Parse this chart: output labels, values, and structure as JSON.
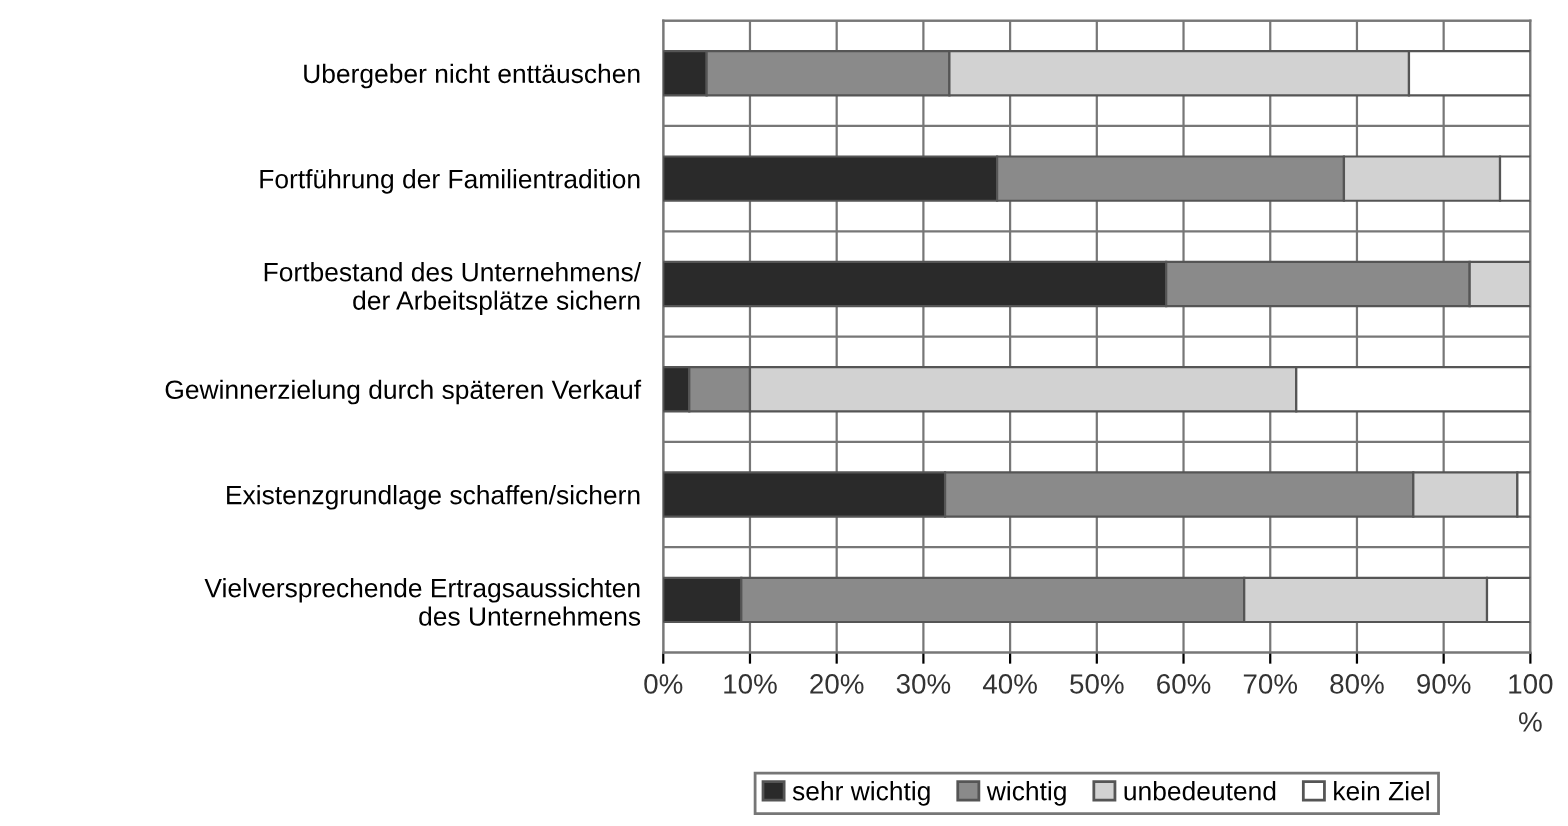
{
  "chart_data": {
    "type": "bar",
    "orientation": "horizontal",
    "stacked": true,
    "categories": [
      "Ubergeber nicht enttäuschen",
      "Fortführung der Familientradition",
      "Fortbestand des Unternehmens/\nder Arbeitsplätze sichern",
      "Gewinnerzielung durch späteren Verkauf",
      "Existenzgrundlage schaffen/sichern",
      "Vielversprechende Ertragsaussichten\ndes Unternehmens"
    ],
    "series": [
      {
        "name": "sehr wichtig",
        "color": "#2a2a2a",
        "values": [
          5,
          38.5,
          58,
          3,
          32.5,
          9
        ]
      },
      {
        "name": "wichtig",
        "color": "#8a8a8a",
        "values": [
          28,
          40,
          35,
          7,
          54,
          58
        ]
      },
      {
        "name": "unbedeutend",
        "color": "#d2d2d2",
        "values": [
          53,
          18,
          7,
          63,
          12,
          28
        ]
      },
      {
        "name": "kein Ziel",
        "color": "#ffffff",
        "values": [
          14,
          3.5,
          null,
          27,
          1.5,
          5
        ]
      }
    ],
    "xlim": [
      0,
      100
    ],
    "xticks": [
      {
        "value": 0,
        "label": "0%"
      },
      {
        "value": 10,
        "label": "10%"
      },
      {
        "value": 20,
        "label": "20%"
      },
      {
        "value": 30,
        "label": "30%"
      },
      {
        "value": 40,
        "label": "40%"
      },
      {
        "value": 50,
        "label": "50%"
      },
      {
        "value": 60,
        "label": "60%"
      },
      {
        "value": 70,
        "label": "70%"
      },
      {
        "value": 80,
        "label": "80%"
      },
      {
        "value": 90,
        "label": "90%"
      },
      {
        "value": 100,
        "label": "100\n%"
      }
    ],
    "grid": true,
    "legend": "bottom"
  }
}
